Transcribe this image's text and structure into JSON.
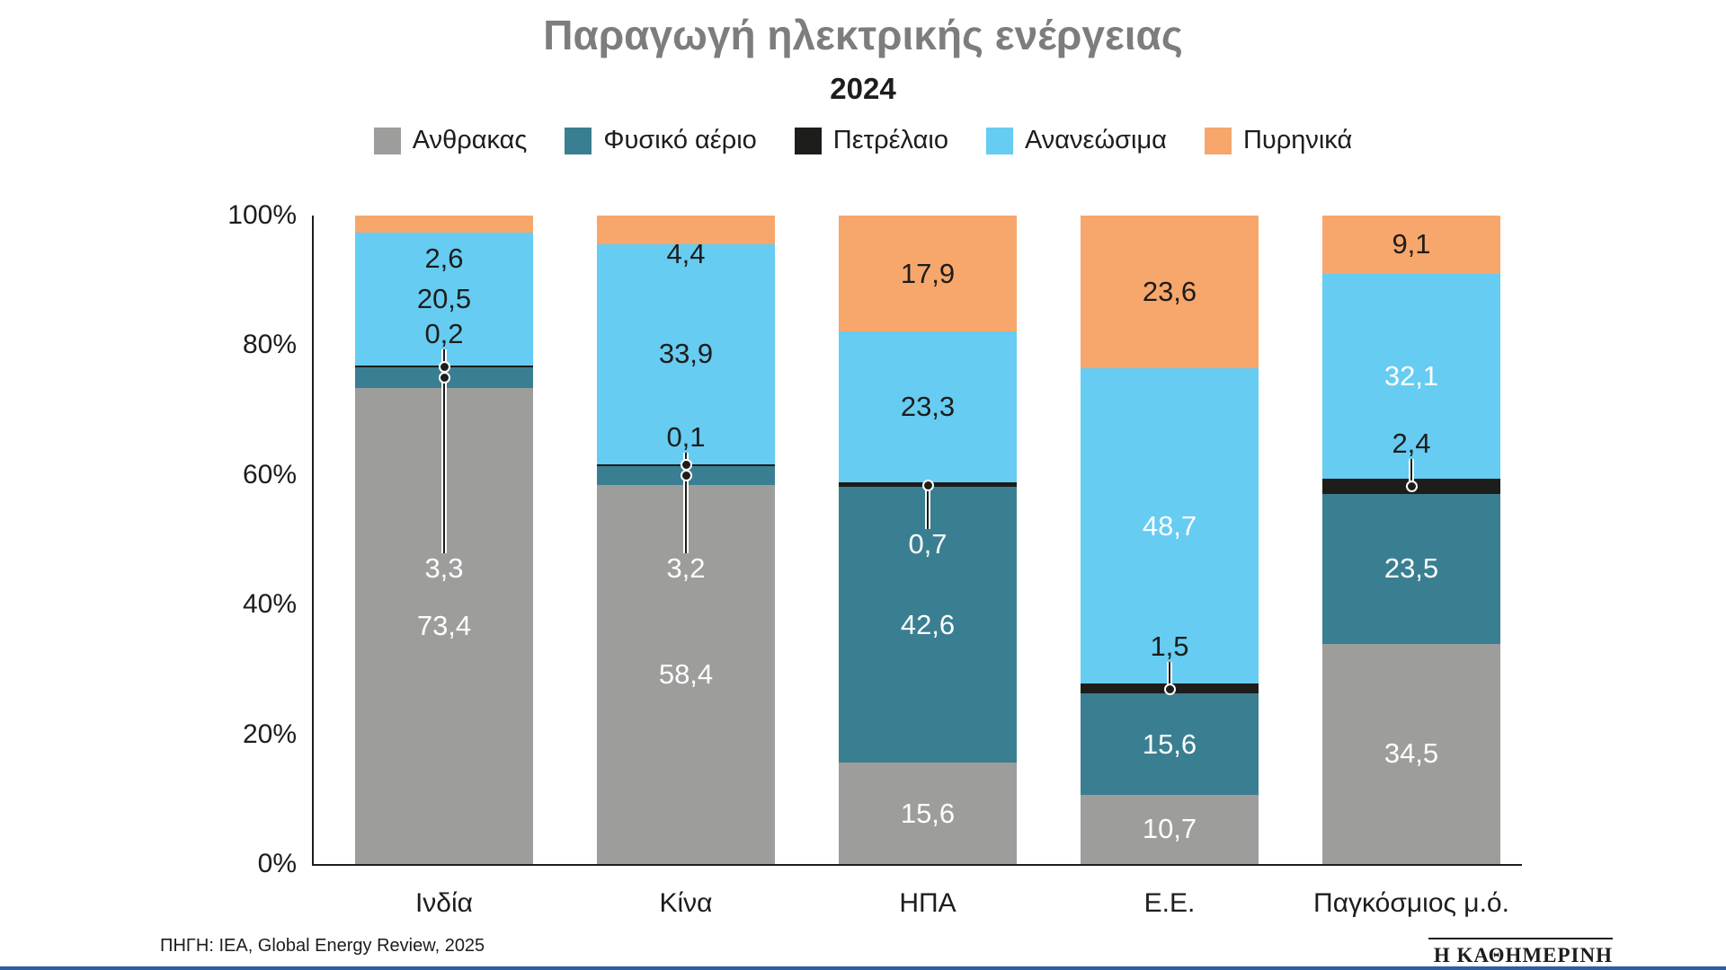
{
  "chart_data": {
    "type": "bar",
    "stacked": true,
    "unit": "%",
    "title": "Παραγωγή ηλεκτρικής ενέργειας",
    "subtitle": "2024",
    "source": "ΠΗΓΗ: IEA, Global Energy Review, 2025",
    "categories": [
      "Ινδία",
      "Κίνα",
      "ΗΠΑ",
      "Ε.Ε.",
      "Παγκόσμιος μ.ό."
    ],
    "series": [
      {
        "name": "Ανθρακας",
        "color": "#9d9d9c",
        "values": [
          73.4,
          58.4,
          15.6,
          10.7,
          34.5
        ]
      },
      {
        "name": "Φυσικό αέριο",
        "color": "#3a7f91",
        "values": [
          3.3,
          3.2,
          42.6,
          15.6,
          23.5
        ]
      },
      {
        "name": "Πετρέλαιο",
        "color": "#1d1d1b",
        "values": [
          0.2,
          0.1,
          0.7,
          1.5,
          2.4
        ]
      },
      {
        "name": "Ανανεώσιμα",
        "color": "#66ccf2",
        "values": [
          20.5,
          33.9,
          23.3,
          48.7,
          32.1
        ]
      },
      {
        "name": "Πυρηνικά",
        "color": "#f7a76c",
        "values": [
          2.6,
          4.4,
          17.9,
          23.6,
          9.1
        ]
      }
    ],
    "ylim": [
      0,
      100
    ],
    "yticks": [
      "100%",
      "80%",
      "60%",
      "40%",
      "20%",
      "0%"
    ],
    "legend_position": "top",
    "grid": false,
    "decimal_separator": ","
  },
  "branding": {
    "logo_text": "Η ΚΑΘΗΜΕΡΙΝΗ"
  }
}
